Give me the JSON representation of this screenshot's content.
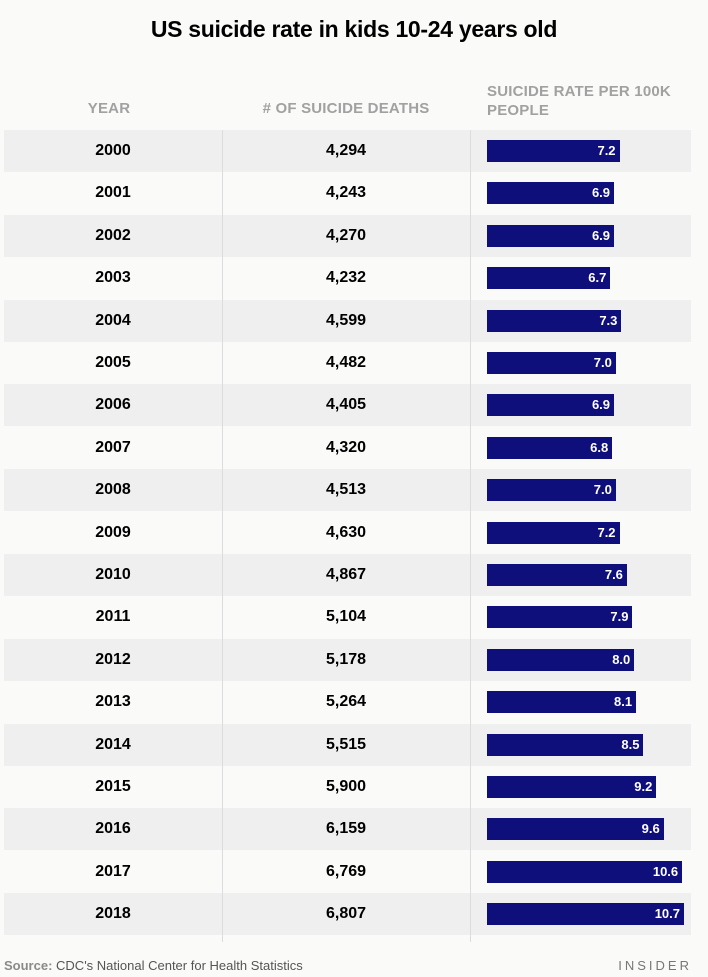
{
  "title": "US suicide rate in kids 10-24 years old",
  "headers": {
    "year": "YEAR",
    "deaths": "# OF SUICIDE DEATHS",
    "rate": "SUICIDE RATE PER 100K PEOPLE"
  },
  "chart_data": {
    "type": "table",
    "title": "US suicide rate in kids 10-24 years old",
    "columns": [
      "YEAR",
      "# OF SUICIDE DEATHS",
      "SUICIDE RATE PER 100K PEOPLE"
    ],
    "rows": [
      {
        "year": "2000",
        "deaths": "4,294",
        "rate": 7.2,
        "rate_label": "7.2"
      },
      {
        "year": "2001",
        "deaths": "4,243",
        "rate": 6.9,
        "rate_label": "6.9"
      },
      {
        "year": "2002",
        "deaths": "4,270",
        "rate": 6.9,
        "rate_label": "6.9"
      },
      {
        "year": "2003",
        "deaths": "4,232",
        "rate": 6.7,
        "rate_label": "6.7"
      },
      {
        "year": "2004",
        "deaths": "4,599",
        "rate": 7.3,
        "rate_label": "7.3"
      },
      {
        "year": "2005",
        "deaths": "4,482",
        "rate": 7.0,
        "rate_label": "7.0"
      },
      {
        "year": "2006",
        "deaths": "4,405",
        "rate": 6.9,
        "rate_label": "6.9"
      },
      {
        "year": "2007",
        "deaths": "4,320",
        "rate": 6.8,
        "rate_label": "6.8"
      },
      {
        "year": "2008",
        "deaths": "4,513",
        "rate": 7.0,
        "rate_label": "7.0"
      },
      {
        "year": "2009",
        "deaths": "4,630",
        "rate": 7.2,
        "rate_label": "7.2"
      },
      {
        "year": "2010",
        "deaths": "4,867",
        "rate": 7.6,
        "rate_label": "7.6"
      },
      {
        "year": "2011",
        "deaths": "5,104",
        "rate": 7.9,
        "rate_label": "7.9"
      },
      {
        "year": "2012",
        "deaths": "5,178",
        "rate": 8.0,
        "rate_label": "8.0"
      },
      {
        "year": "2013",
        "deaths": "5,264",
        "rate": 8.1,
        "rate_label": "8.1"
      },
      {
        "year": "2014",
        "deaths": "5,515",
        "rate": 8.5,
        "rate_label": "8.5"
      },
      {
        "year": "2015",
        "deaths": "5,900",
        "rate": 9.2,
        "rate_label": "9.2"
      },
      {
        "year": "2016",
        "deaths": "6,159",
        "rate": 9.6,
        "rate_label": "9.6"
      },
      {
        "year": "2017",
        "deaths": "6,769",
        "rate": 10.6,
        "rate_label": "10.6"
      },
      {
        "year": "2018",
        "deaths": "6,807",
        "rate": 10.7,
        "rate_label": "10.7"
      }
    ],
    "bar_color": "#0f0f7c",
    "row_shade_color": "#efefef"
  },
  "footer": {
    "source_label": "Source:",
    "source_text": "CDC's National Center for Health Statistics",
    "brand": "INSIDER"
  }
}
